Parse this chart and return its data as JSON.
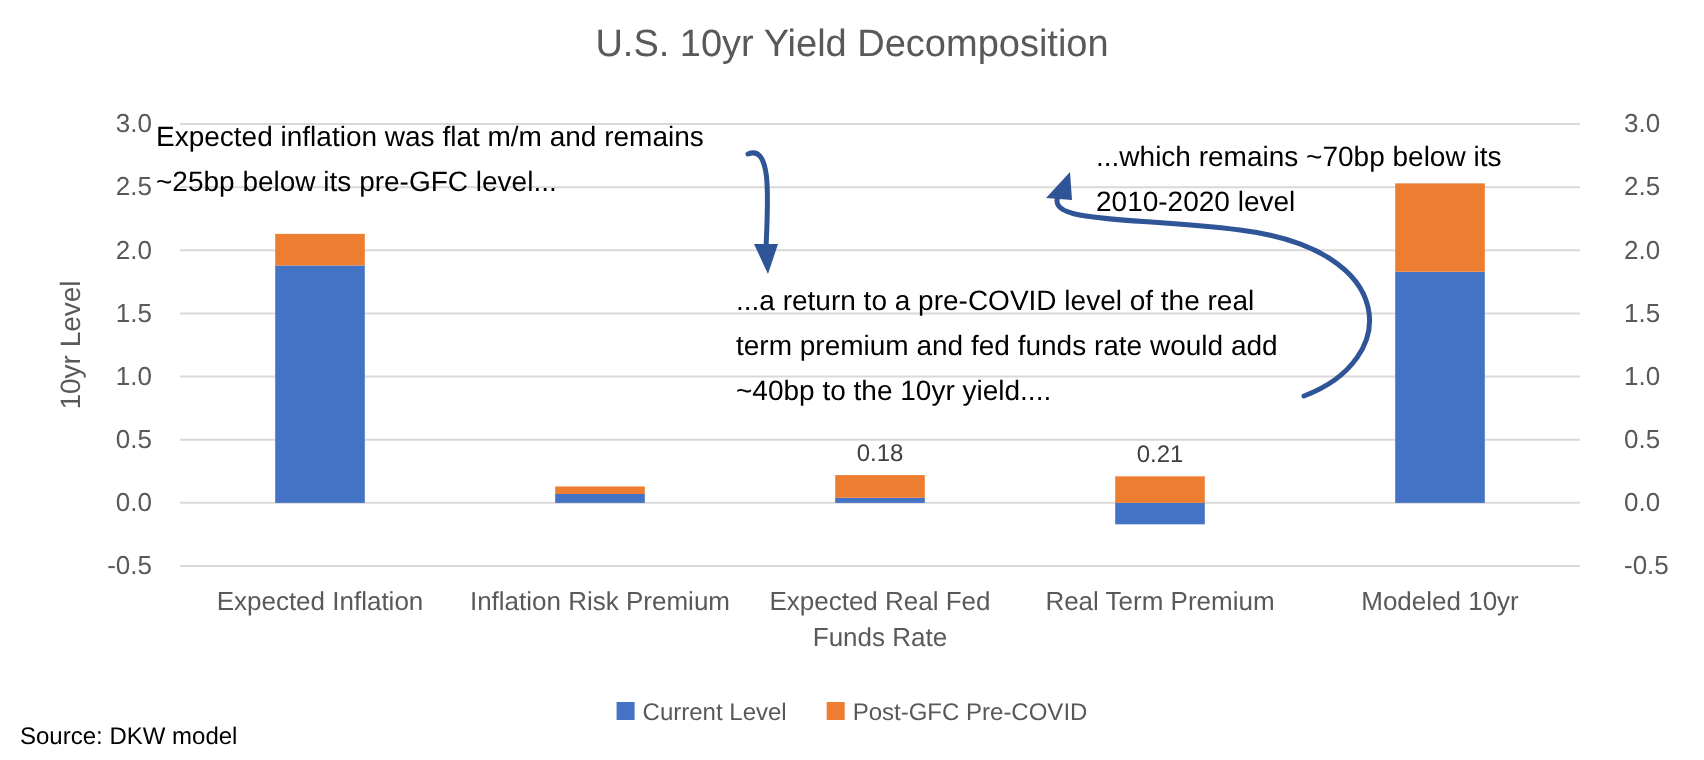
{
  "chart_data": {
    "type": "bar",
    "title": "U.S. 10yr Yield Decomposition",
    "ylabel": "10yr Level",
    "categories": [
      "Expected Inflation",
      "Inflation Risk Premium",
      "Expected Real Fed Funds Rate",
      "Real Term Premium",
      "Modeled 10yr"
    ],
    "stacked": true,
    "series": [
      {
        "name": "Current Level",
        "color": "#4472c4",
        "values": [
          1.88,
          0.07,
          0.04,
          -0.17,
          1.83
        ]
      },
      {
        "name": "Post-GFC Pre-COVID",
        "color": "#ed7d31",
        "values": [
          0.25,
          0.06,
          0.18,
          0.21,
          0.7
        ],
        "value_labels": [
          null,
          null,
          "0.18",
          "0.21",
          null
        ]
      }
    ],
    "ylim": [
      -0.5,
      3.0
    ],
    "yticks": [
      {
        "value": -0.5,
        "label": "-0.5"
      },
      {
        "value": 0,
        "label": "0.0"
      },
      {
        "value": 0.5,
        "label": "0.5"
      },
      {
        "value": 1,
        "label": "1.0"
      },
      {
        "value": 1.5,
        "label": "1.5"
      },
      {
        "value": 2,
        "label": "2.0"
      },
      {
        "value": 2.5,
        "label": "2.5"
      },
      {
        "value": 3,
        "label": "3.0"
      }
    ],
    "y2lim": [
      -0.5,
      3.0
    ],
    "y2ticks": [
      {
        "value": -0.5,
        "label": "-0.5"
      },
      {
        "value": 0,
        "label": "0.0"
      },
      {
        "value": 0.5,
        "label": "0.5"
      },
      {
        "value": 1,
        "label": "1.0"
      },
      {
        "value": 1.5,
        "label": "1.5"
      },
      {
        "value": 2,
        "label": "2.0"
      },
      {
        "value": 2.5,
        "label": "2.5"
      },
      {
        "value": 3,
        "label": "3.0"
      }
    ],
    "grid": "y",
    "legend": "bottom",
    "annotations": [
      "Expected inflation was flat m/m and remains ~25bp below its pre-GFC level...",
      "...which remains ~70bp  below its 2010-2020 level",
      "...a return to a pre-COVID level of the real term premium  and fed funds rate would add ~40bp to the 10yr yield....",
      "Source: DKW model"
    ]
  }
}
